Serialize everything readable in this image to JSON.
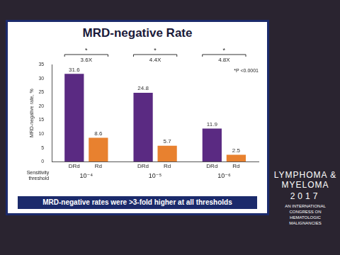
{
  "chart_data": {
    "type": "bar",
    "title": "MRD-negative Rate",
    "y_label": "MRD-negative rate, %",
    "x_label": "Sensitivity threshold",
    "categories": [
      "10⁻⁴",
      "10⁻⁵",
      "10⁻⁶"
    ],
    "series": [
      {
        "name": "DRd",
        "color": "#5a2a82",
        "values": [
          31.6,
          24.8,
          11.9
        ]
      },
      {
        "name": "Rd",
        "color": "#e8812f",
        "values": [
          8.6,
          5.7,
          2.5
        ]
      }
    ],
    "group_annotations": [
      "3.6X",
      "4.4X",
      "4.8X"
    ],
    "group_marker": "*",
    "note": "*P <0.0001",
    "ylim": [
      0,
      35
    ],
    "yticks": [
      0,
      5,
      10,
      15,
      20,
      25,
      30,
      35
    ],
    "grid": false,
    "data_labels": true
  },
  "slide": {
    "banner": "MRD-negative rates were >3-fold higher at all thresholds",
    "branding": {
      "name": "LYMPHOMA & MYELOMA",
      "year": "2017",
      "tagline": "AN INTERNATIONAL CONGRESS ON HEMATOLOGIC MALIGNANCIES"
    }
  }
}
